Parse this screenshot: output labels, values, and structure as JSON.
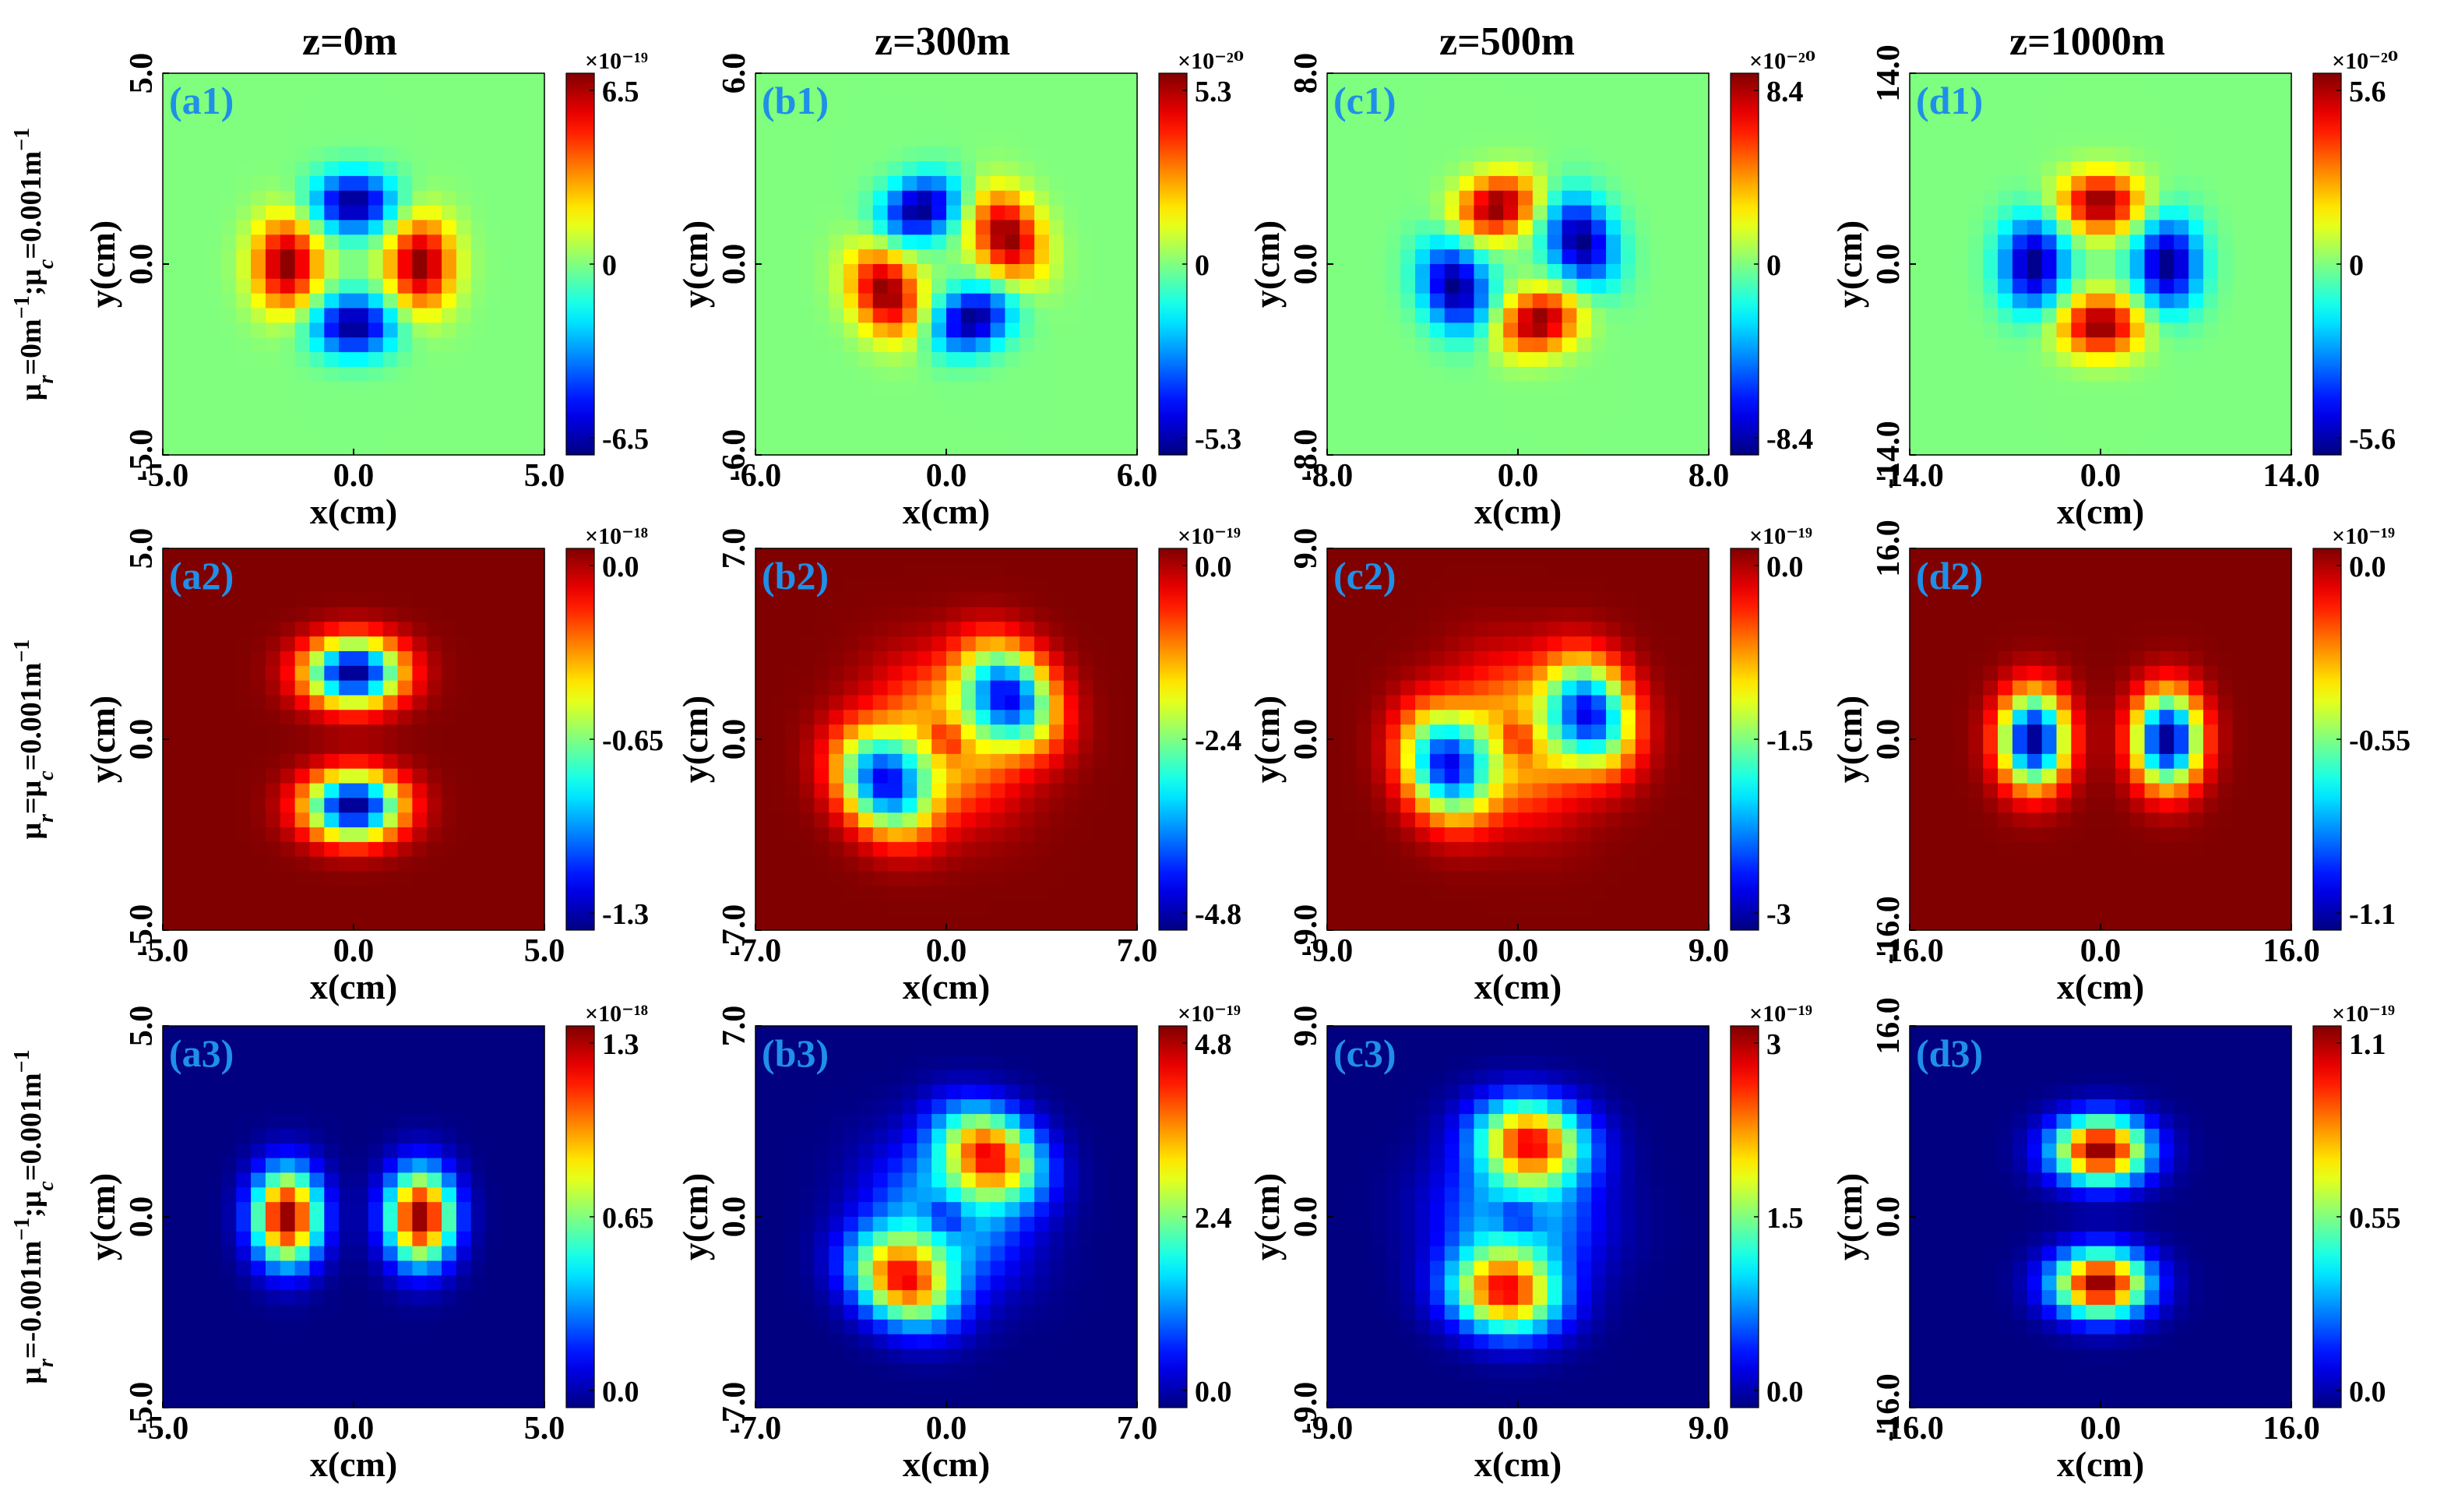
{
  "colors": {
    "label": "#1f8fe8",
    "axis": "#000000"
  },
  "colormap": "jet",
  "column_titles": [
    "z=0m",
    "z=300m",
    "z=500m",
    "z=1000m"
  ],
  "row_labels": [
    "μr=0m⁻¹;μc=0.001m⁻¹",
    "μr=μc=0.001m⁻¹",
    "μr=-0.001m⁻¹;μc=0.001m⁻¹"
  ],
  "chart_data": [
    {
      "panel": "(a1)",
      "type": "heatmap",
      "title": "z=0m",
      "xlabel": "x(cm)",
      "ylabel": "y(cm)",
      "xlim": [
        -5.0,
        5.0
      ],
      "ylim": [
        -5.0,
        5.0
      ],
      "xticks": [
        "-5.0",
        "0.0",
        "5.0"
      ],
      "yticks": [
        "-5.0",
        "0.0",
        "5.0"
      ],
      "colorbar": {
        "ticks": [
          "6.5",
          "0",
          "-6.5"
        ],
        "exponent": "×10⁻¹⁹",
        "range": [
          -6.5,
          6.5
        ]
      },
      "pattern": "quad",
      "angle": 0,
      "sign": 1
    },
    {
      "panel": "(b1)",
      "type": "heatmap",
      "title": "z=300m",
      "xlabel": "x(cm)",
      "ylabel": "y(cm)",
      "xlim": [
        -6.0,
        6.0
      ],
      "ylim": [
        -6.0,
        6.0
      ],
      "xticks": [
        "-6.0",
        "0.0",
        "6.0"
      ],
      "yticks": [
        "-6.0",
        "0.0",
        "6.0"
      ],
      "colorbar": {
        "ticks": [
          "5.3",
          "0",
          "-5.3"
        ],
        "exponent": "×10⁻²⁰",
        "range": [
          -5.3,
          5.3
        ]
      },
      "pattern": "quad",
      "angle": 25,
      "sign": 1
    },
    {
      "panel": "(c1)",
      "type": "heatmap",
      "title": "z=500m",
      "xlabel": "x(cm)",
      "ylabel": "y(cm)",
      "xlim": [
        -8.0,
        8.0
      ],
      "ylim": [
        -8.0,
        8.0
      ],
      "xticks": [
        "-8.0",
        "0.0",
        "8.0"
      ],
      "yticks": [
        "-8.0",
        "0.0",
        "8.0"
      ],
      "colorbar": {
        "ticks": [
          "8.4",
          "0",
          "-8.4"
        ],
        "exponent": "×10⁻²⁰",
        "range": [
          -8.4,
          8.4
        ]
      },
      "pattern": "quad",
      "angle": 20,
      "sign": -1
    },
    {
      "panel": "(d1)",
      "type": "heatmap",
      "title": "z=1000m",
      "xlabel": "x(cm)",
      "ylabel": "y(cm)",
      "xlim": [
        -14.0,
        14.0
      ],
      "ylim": [
        -14.0,
        14.0
      ],
      "xticks": [
        "-14.0",
        "0.0",
        "14.0"
      ],
      "yticks": [
        "-14.0",
        "0.0",
        "14.0"
      ],
      "colorbar": {
        "ticks": [
          "5.6",
          "0",
          "-5.6"
        ],
        "exponent": "×10⁻²⁰",
        "range": [
          -5.6,
          5.6
        ]
      },
      "pattern": "quad",
      "angle": 0,
      "sign": -1
    },
    {
      "panel": "(a2)",
      "type": "heatmap",
      "xlabel": "x(cm)",
      "ylabel": "y(cm)",
      "xlim": [
        -5.0,
        5.0
      ],
      "ylim": [
        -5.0,
        5.0
      ],
      "xticks": [
        "-5.0",
        "0.0",
        "5.0"
      ],
      "yticks": [
        "-5.0",
        "0.0",
        "5.0"
      ],
      "colorbar": {
        "ticks": [
          "0.0",
          "-0.65",
          "-1.3"
        ],
        "exponent": "×10⁻¹⁸",
        "range": [
          -1.3,
          0.0
        ]
      },
      "pattern": "pairV",
      "angle": 0
    },
    {
      "panel": "(b2)",
      "type": "heatmap",
      "xlabel": "x(cm)",
      "ylabel": "y(cm)",
      "xlim": [
        -7.0,
        7.0
      ],
      "ylim": [
        -7.0,
        7.0
      ],
      "xticks": [
        "-7.0",
        "0.0",
        "7.0"
      ],
      "yticks": [
        "-7.0",
        "0.0",
        "7.0"
      ],
      "colorbar": {
        "ticks": [
          "0.0",
          "-2.4",
          "-4.8"
        ],
        "exponent": "×10⁻¹⁹",
        "range": [
          -4.8,
          0.0
        ]
      },
      "pattern": "ring",
      "angle": 35
    },
    {
      "panel": "(c2)",
      "type": "heatmap",
      "xlabel": "x(cm)",
      "ylabel": "y(cm)",
      "xlim": [
        -9.0,
        9.0
      ],
      "ylim": [
        -9.0,
        9.0
      ],
      "xticks": [
        "-9.0",
        "0.0",
        "9.0"
      ],
      "yticks": [
        "-9.0",
        "0.0",
        "9.0"
      ],
      "colorbar": {
        "ticks": [
          "0.0",
          "-1.5",
          "-3"
        ],
        "exponent": "×10⁻¹⁹",
        "range": [
          -3.0,
          0.0
        ]
      },
      "pattern": "ring",
      "angle": 20
    },
    {
      "panel": "(d2)",
      "type": "heatmap",
      "xlabel": "x(cm)",
      "ylabel": "y(cm)",
      "xlim": [
        -16.0,
        16.0
      ],
      "ylim": [
        -16.0,
        16.0
      ],
      "xticks": [
        "-16.0",
        "0.0",
        "16.0"
      ],
      "yticks": [
        "-16.0",
        "0.0",
        "16.0"
      ],
      "colorbar": {
        "ticks": [
          "0.0",
          "-0.55",
          "-1.1"
        ],
        "exponent": "×10⁻¹⁹",
        "range": [
          -1.1,
          0.0
        ]
      },
      "pattern": "pairH",
      "angle": 0
    },
    {
      "panel": "(a3)",
      "type": "heatmap",
      "xlabel": "x(cm)",
      "ylabel": "y(cm)",
      "xlim": [
        -5.0,
        5.0
      ],
      "ylim": [
        -5.0,
        5.0
      ],
      "xticks": [
        "-5.0",
        "0.0",
        "5.0"
      ],
      "yticks": [
        "-5.0",
        "0.0",
        "5.0"
      ],
      "colorbar": {
        "ticks": [
          "1.3",
          "0.65",
          "0.0"
        ],
        "exponent": "×10⁻¹⁸",
        "range": [
          0.0,
          1.3
        ]
      },
      "pattern": "pairH",
      "angle": 0
    },
    {
      "panel": "(b3)",
      "type": "heatmap",
      "xlabel": "x(cm)",
      "ylabel": "y(cm)",
      "xlim": [
        -7.0,
        7.0
      ],
      "ylim": [
        -7.0,
        7.0
      ],
      "xticks": [
        "-7.0",
        "0.0",
        "7.0"
      ],
      "yticks": [
        "-7.0",
        "0.0",
        "7.0"
      ],
      "colorbar": {
        "ticks": [
          "4.8",
          "2.4",
          "0.0"
        ],
        "exponent": "×10⁻¹⁹",
        "range": [
          0.0,
          4.8
        ]
      },
      "pattern": "ring",
      "angle": 55
    },
    {
      "panel": "(c3)",
      "type": "heatmap",
      "xlabel": "x(cm)",
      "ylabel": "y(cm)",
      "xlim": [
        -9.0,
        9.0
      ],
      "ylim": [
        -9.0,
        9.0
      ],
      "xticks": [
        "-9.0",
        "0.0",
        "9.0"
      ],
      "yticks": [
        "-9.0",
        "0.0",
        "9.0"
      ],
      "colorbar": {
        "ticks": [
          "3",
          "1.5",
          "0.0"
        ],
        "exponent": "×10⁻¹⁹",
        "range": [
          0.0,
          3.0
        ]
      },
      "pattern": "ring",
      "angle": 80
    },
    {
      "panel": "(d3)",
      "type": "heatmap",
      "xlabel": "x(cm)",
      "ylabel": "y(cm)",
      "xlim": [
        -16.0,
        16.0
      ],
      "ylim": [
        -16.0,
        16.0
      ],
      "xticks": [
        "-16.0",
        "0.0",
        "16.0"
      ],
      "yticks": [
        "-16.0",
        "0.0",
        "16.0"
      ],
      "colorbar": {
        "ticks": [
          "1.1",
          "0.55",
          "0.0"
        ],
        "exponent": "×10⁻¹⁹",
        "range": [
          0.0,
          1.1
        ]
      },
      "pattern": "pairV",
      "angle": 0
    }
  ]
}
